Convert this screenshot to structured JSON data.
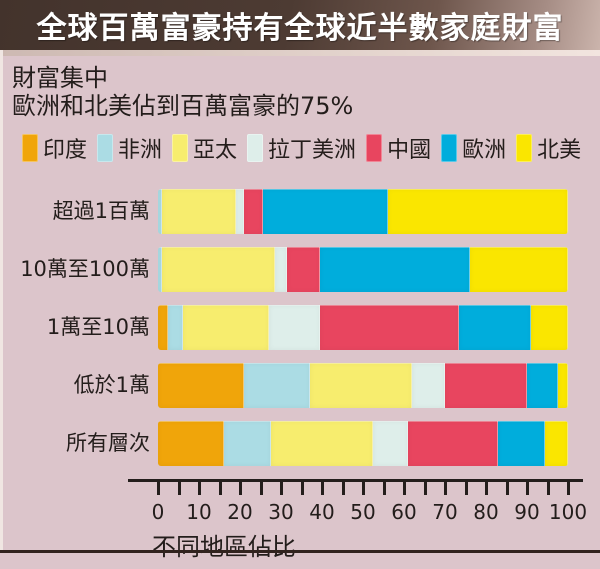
{
  "header": {
    "title": "全球百萬富豪持有全球近半數家庭財富"
  },
  "subtitle": {
    "line1": "財富集中",
    "line2": "歐洲和北美佔到百萬富豪的75%"
  },
  "colors": {
    "background": "#DCC5CB",
    "title_bar_dark": "#4D3B33",
    "title_bar_light": "#CBB4AC",
    "axis": "#241E1C",
    "text": "#231D1B"
  },
  "chart_data": {
    "type": "bar",
    "orientation": "horizontal",
    "stacked": true,
    "grid": false,
    "legend_position": "top",
    "categories": [
      "超過1百萬",
      "10萬至100萬",
      "1萬至10萬",
      "低於1萬",
      "所有層次"
    ],
    "series": [
      {
        "id": "india",
        "name": "印度",
        "color": "#F0A50A",
        "values": [
          0,
          0,
          2.5,
          21,
          16
        ]
      },
      {
        "id": "africa",
        "name": "非洲",
        "color": "#ABDCE4",
        "values": [
          1,
          1,
          3.5,
          16,
          11.5
        ]
      },
      {
        "id": "asia-pacific",
        "name": "亞太",
        "color": "#F7ED6E",
        "values": [
          18,
          27.5,
          21,
          25,
          25
        ]
      },
      {
        "id": "latin-america",
        "name": "拉丁美洲",
        "color": "#DEEEEA",
        "values": [
          2,
          3,
          12.5,
          8,
          8.5
        ]
      },
      {
        "id": "china",
        "name": "中國",
        "color": "#E8455F",
        "values": [
          4.5,
          8,
          34,
          20,
          22
        ]
      },
      {
        "id": "europe",
        "name": "歐洲",
        "color": "#00ADDC",
        "values": [
          30.5,
          36.5,
          17.5,
          7.5,
          11.5
        ]
      },
      {
        "id": "north-america",
        "name": "北美",
        "color": "#FAE600",
        "values": [
          44,
          24,
          9,
          2.5,
          5.5
        ]
      }
    ],
    "xlabel": "不同地區佔比",
    "xlim": [
      0,
      100
    ],
    "xticks": [
      0,
      10,
      20,
      30,
      40,
      50,
      60,
      70,
      80,
      90,
      100
    ],
    "minor_tick_step": 5
  }
}
